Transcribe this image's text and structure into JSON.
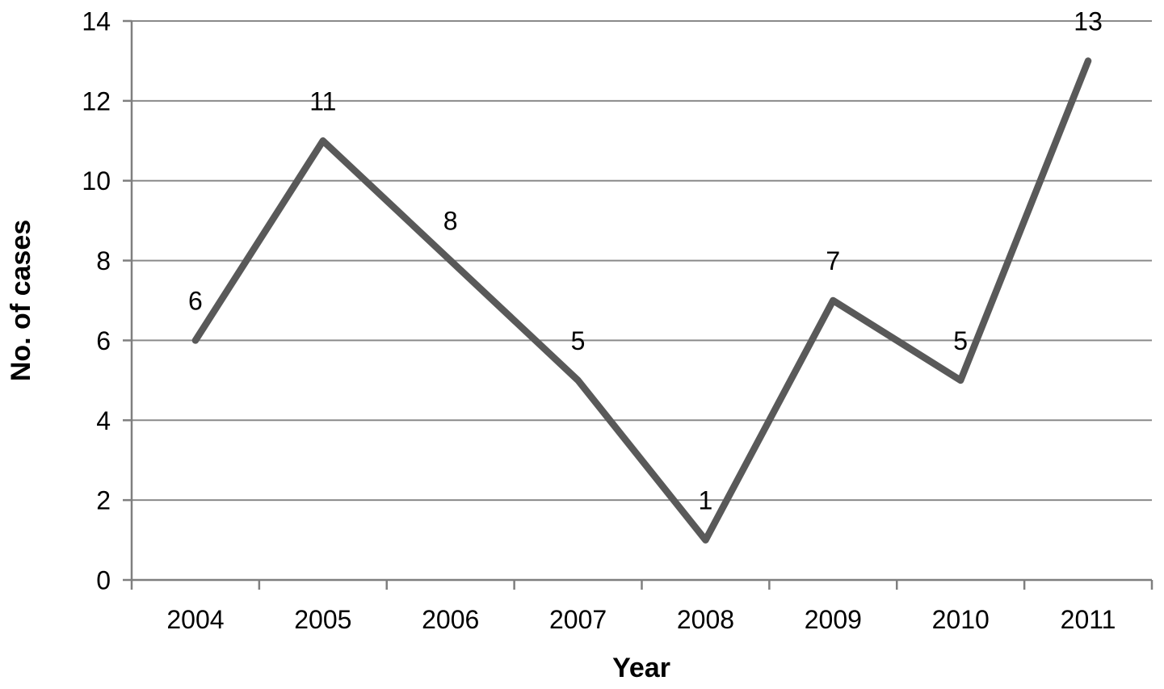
{
  "figure": {
    "background_color": "#ffffff",
    "text_color": "#000000"
  },
  "chart_data": {
    "type": "line",
    "title": "",
    "categories": [
      "2004",
      "2005",
      "2006",
      "2007",
      "2008",
      "2009",
      "2010",
      "2011"
    ],
    "values": [
      6,
      11,
      8,
      5,
      1,
      7,
      5,
      13
    ],
    "data_labels": [
      "6",
      "11",
      "8",
      "5",
      "1",
      "7",
      "5",
      "13"
    ],
    "xlabel": "Year",
    "ylabel": "No. of cases",
    "ylim": [
      0,
      14
    ],
    "yticks": [
      0,
      2,
      4,
      6,
      8,
      10,
      12,
      14
    ],
    "ytick_labels": [
      "0",
      "2",
      "4",
      "6",
      "8",
      "10",
      "12",
      "14"
    ],
    "grid": true,
    "legend": false,
    "data_label_position": "above",
    "line_color": "#595959",
    "grid_color": "#8a8a8a",
    "axis_color": "#7f7f7f"
  }
}
